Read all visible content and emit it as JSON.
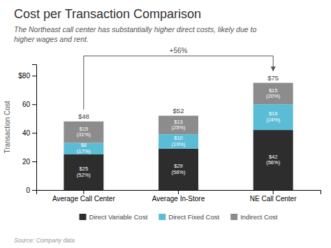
{
  "chart_data": {
    "type": "bar",
    "stacked": true,
    "title": "Cost per Transaction Comparison",
    "subtitle": "The Northeast call center has substantially higher direct costs, likely due to\nhigher wages and rent.",
    "ylabel": "Transaction Cost",
    "source": "Source: Company data",
    "categories": [
      "Average Call Center",
      "Average In-Store",
      "NE Call Center"
    ],
    "series": [
      {
        "name": "Direct Variable Cost",
        "color": "#2d2d2d",
        "values": [
          25,
          29,
          42
        ],
        "value_labels": [
          "$25\n(52%)",
          "$29\n(56%)",
          "$42\n(56%)"
        ]
      },
      {
        "name": "Direct Fixed Cost",
        "color": "#5bbcd6",
        "values": [
          8,
          10,
          18
        ],
        "value_labels": [
          "$8\n(17%)",
          "$10\n(19%)",
          "$18\n(24%)"
        ]
      },
      {
        "name": "Indirect Cost",
        "color": "#8c8c8c",
        "values": [
          15,
          13,
          15
        ],
        "value_labels": [
          "$15\n(31%)",
          "$13\n(25%)",
          "$15\n(20%)"
        ]
      }
    ],
    "totals": {
      "values": [
        48,
        52,
        75
      ],
      "value_labels": [
        "$48",
        "$52",
        "$75"
      ]
    },
    "annotation": "+56%",
    "ylim": [
      0,
      88
    ],
    "yticks": [
      0,
      20,
      40,
      60,
      {
        "value": 80,
        "label": "$80"
      }
    ],
    "grid": false,
    "legend": "bottom",
    "data_labels": true
  }
}
